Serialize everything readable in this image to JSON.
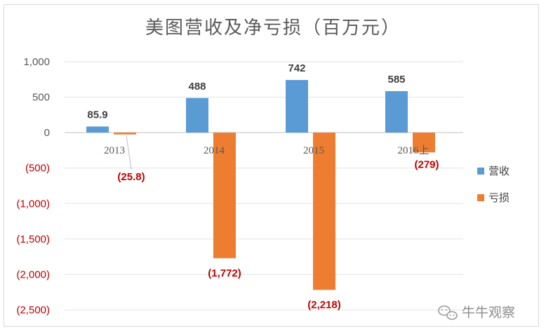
{
  "chart_data": {
    "type": "bar",
    "title": "美图营收及净亏损（百万元）",
    "categories": [
      "2013",
      "2014",
      "2015",
      "2016上"
    ],
    "series": [
      {
        "name": "营收",
        "color": "#5b9bd5",
        "values": [
          85.9,
          488,
          742,
          585
        ],
        "labels": [
          "85.9",
          "488",
          "742",
          "585"
        ],
        "label_color": "#404040"
      },
      {
        "name": "亏损",
        "color": "#ed7d31",
        "values": [
          -25.8,
          -1772,
          -2218,
          -279
        ],
        "labels": [
          "(25.8)",
          "(1,772)",
          "(2,218)",
          "(279)"
        ],
        "label_color": "#c00000"
      }
    ],
    "yticks": [
      1000,
      500,
      0,
      -500,
      -1000,
      -1500,
      -2000,
      -2500
    ],
    "ytick_labels": [
      "1,000",
      "500",
      "0",
      "(500)",
      "(1,000)",
      "(1,500)",
      "(2,000)",
      "(2,500)"
    ],
    "ytick_colors": {
      "positive": "#595959",
      "negative": "#c00000"
    },
    "ylim": [
      -2500,
      1000
    ],
    "grid": true,
    "legend_position": "right"
  },
  "watermark": {
    "text": "牛牛观察",
    "icon": "wechat-icon"
  }
}
